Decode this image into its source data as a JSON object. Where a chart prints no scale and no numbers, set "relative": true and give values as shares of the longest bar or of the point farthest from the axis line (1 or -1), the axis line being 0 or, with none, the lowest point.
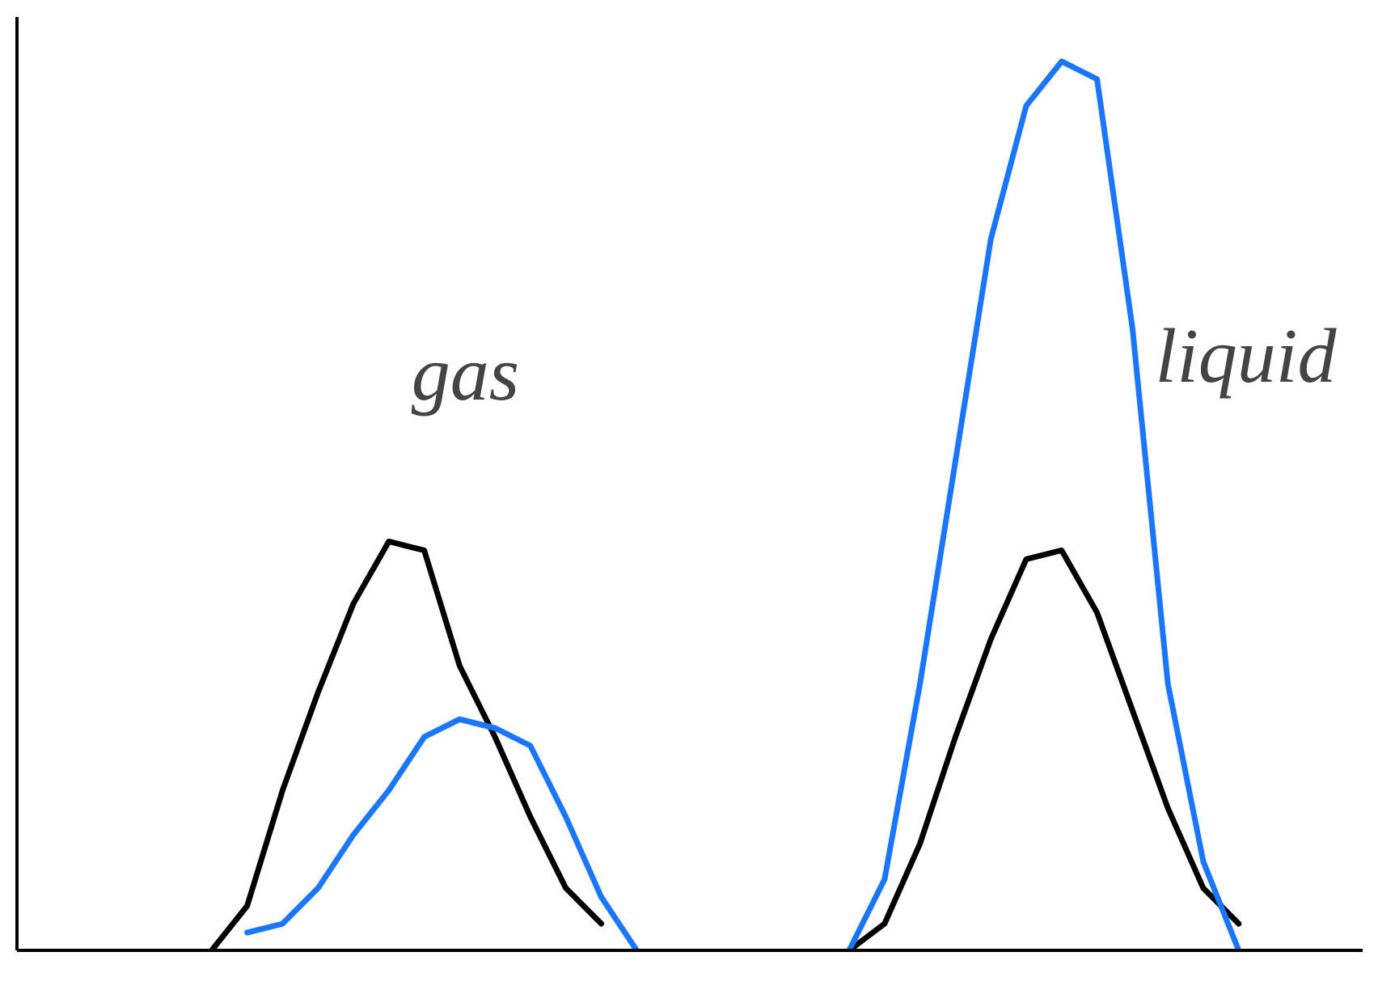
{
  "chart_data": {
    "type": "line",
    "relative": true,
    "grid": false,
    "categories": [
      null,
      null,
      null,
      null,
      null,
      null,
      null,
      null,
      null,
      null,
      null,
      null,
      null,
      null,
      null,
      null,
      null,
      null,
      null,
      null,
      null,
      null,
      null,
      null,
      null,
      null,
      null,
      null,
      null,
      null,
      null,
      null,
      null,
      null,
      null,
      null,
      null,
      null
    ],
    "series": [
      {
        "color": "#000000",
        "values": [
          null,
          null,
          null,
          null,
          null,
          0,
          0.05,
          0.18,
          0.29,
          0.39,
          0.46,
          0.45,
          0.32,
          0.24,
          0.15,
          0.07,
          0.03,
          null,
          null,
          null,
          null,
          null,
          null,
          null,
          null,
          null,
          null,
          null,
          null,
          null,
          null,
          null,
          null,
          null,
          null,
          null,
          null,
          null
        ]
      },
      {
        "color": "#1a75ff",
        "values": [
          null,
          null,
          null,
          null,
          null,
          null,
          0.02,
          0.03,
          0.07,
          0.13,
          0.18,
          0.24,
          0.26,
          0.25,
          0.23,
          0.15,
          0.06,
          0,
          null,
          null,
          null,
          null,
          null,
          null,
          null,
          null,
          null,
          null,
          null,
          null,
          null,
          null,
          null,
          null,
          null,
          null,
          null,
          null
        ]
      },
      {
        "color": "#000000",
        "values": [
          null,
          null,
          null,
          null,
          null,
          null,
          null,
          null,
          null,
          null,
          null,
          null,
          null,
          null,
          null,
          null,
          null,
          null,
          null,
          null,
          null,
          null,
          null,
          0,
          0.03,
          0.12,
          0.24,
          0.35,
          0.44,
          0.45,
          0.38,
          0.27,
          0.16,
          0.07,
          0.03,
          null,
          null,
          null
        ]
      },
      {
        "color": "#1a75ff",
        "values": [
          null,
          null,
          null,
          null,
          null,
          null,
          null,
          null,
          null,
          null,
          null,
          null,
          null,
          null,
          null,
          null,
          null,
          null,
          null,
          null,
          null,
          null,
          null,
          0,
          0.08,
          0.3,
          0.55,
          0.8,
          0.95,
          1,
          0.98,
          0.7,
          0.3,
          0.1,
          0,
          null,
          null,
          null
        ]
      }
    ],
    "annotations": [
      "gas",
      "liquid"
    ]
  }
}
